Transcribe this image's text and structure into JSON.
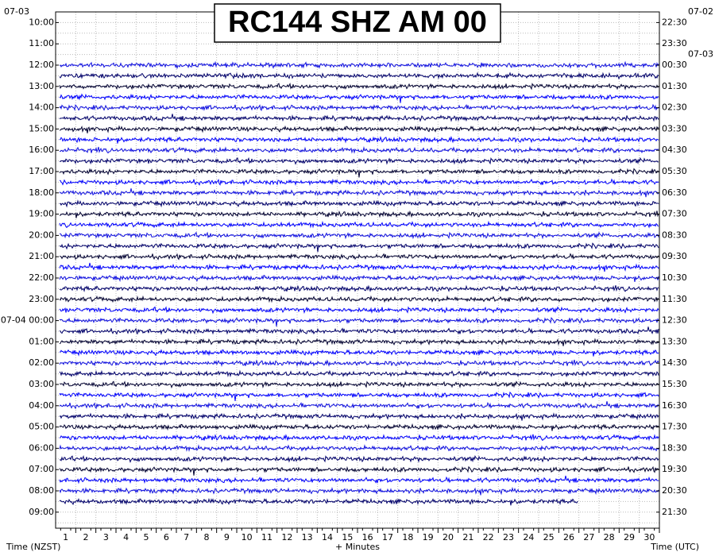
{
  "chart_data": {
    "type": "helicorder",
    "title": "RC144 SHZ AM 00",
    "left_date": "07-03",
    "left_labels": [
      "10:00",
      "11:00",
      "12:00",
      "13:00",
      "14:00",
      "15:00",
      "16:00",
      "17:00",
      "18:00",
      "19:00",
      "20:00",
      "21:00",
      "22:00",
      "23:00",
      "07-04 00:00",
      "01:00",
      "02:00",
      "03:00",
      "04:00",
      "05:00",
      "06:00",
      "07:00",
      "08:00",
      "09:00"
    ],
    "right_dates": [
      "07-02",
      "07-03"
    ],
    "right_labels": [
      "22:30",
      "23:30",
      "00:30",
      "01:30",
      "02:30",
      "03:30",
      "04:30",
      "05:30",
      "06:30",
      "07:30",
      "08:30",
      "09:30",
      "10:30",
      "11:30",
      "12:30",
      "13:30",
      "14:30",
      "15:30",
      "16:30",
      "17:30",
      "18:30",
      "19:30",
      "20:30",
      "21:30"
    ],
    "left_axis_label": "Time (NZST)",
    "x_axis_label": "+ Minutes",
    "right_axis_label": "Time (UTC)",
    "xlim": [
      0,
      30
    ],
    "xticks": [
      1,
      2,
      3,
      4,
      5,
      6,
      7,
      8,
      9,
      10,
      11,
      12,
      13,
      14,
      15,
      16,
      17,
      18,
      19,
      20,
      21,
      22,
      23,
      24,
      25,
      26,
      27,
      28,
      29,
      30
    ],
    "grid": true,
    "trace_colors": [
      "#1010e0",
      "#00006a",
      "#000030",
      "#0000ff"
    ],
    "trace_minutes": [
      30,
      30,
      30,
      30,
      30,
      30,
      30,
      30,
      30,
      30,
      30,
      30,
      30,
      30,
      30,
      30,
      30,
      30,
      30,
      30,
      30,
      30,
      30,
      30,
      30,
      30,
      30,
      30,
      30,
      30,
      30,
      30,
      30,
      30,
      30,
      30,
      30,
      30,
      30,
      30,
      30,
      26
    ]
  }
}
